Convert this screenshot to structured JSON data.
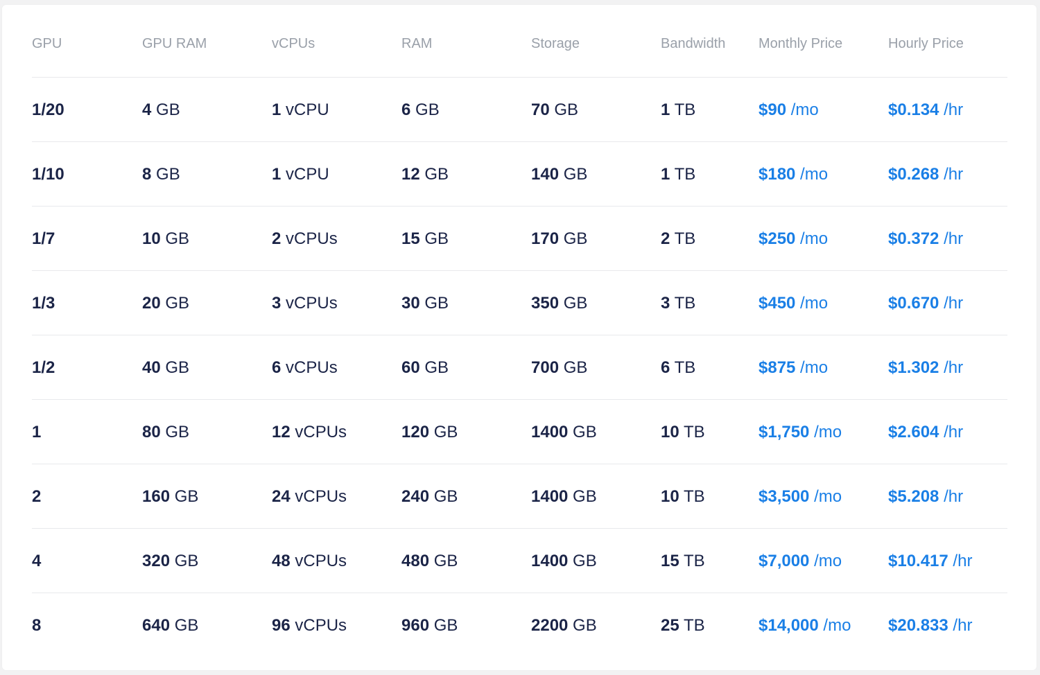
{
  "table": {
    "headers": [
      "GPU",
      "GPU RAM",
      "vCPUs",
      "RAM",
      "Storage",
      "Bandwidth",
      "Monthly Price",
      "Hourly Price"
    ],
    "rows": [
      {
        "gpu": "1/20",
        "gpu_ram": {
          "n": "4",
          "u": " GB"
        },
        "vcpus": {
          "n": "1",
          "u": " vCPU"
        },
        "ram": {
          "n": "6",
          "u": " GB"
        },
        "storage": {
          "n": "70",
          "u": " GB"
        },
        "bandwidth": {
          "n": "1",
          "u": " TB"
        },
        "monthly": {
          "n": "$90",
          "u": " /mo"
        },
        "hourly": {
          "n": "$0.134",
          "u": " /hr"
        }
      },
      {
        "gpu": "1/10",
        "gpu_ram": {
          "n": "8",
          "u": " GB"
        },
        "vcpus": {
          "n": "1",
          "u": " vCPU"
        },
        "ram": {
          "n": "12",
          "u": " GB"
        },
        "storage": {
          "n": "140",
          "u": " GB"
        },
        "bandwidth": {
          "n": "1",
          "u": " TB"
        },
        "monthly": {
          "n": "$180",
          "u": " /mo"
        },
        "hourly": {
          "n": "$0.268",
          "u": " /hr"
        }
      },
      {
        "gpu": "1/7",
        "gpu_ram": {
          "n": "10",
          "u": " GB"
        },
        "vcpus": {
          "n": "2",
          "u": " vCPUs"
        },
        "ram": {
          "n": "15",
          "u": " GB"
        },
        "storage": {
          "n": "170",
          "u": " GB"
        },
        "bandwidth": {
          "n": "2",
          "u": " TB"
        },
        "monthly": {
          "n": "$250",
          "u": " /mo"
        },
        "hourly": {
          "n": "$0.372",
          "u": " /hr"
        }
      },
      {
        "gpu": "1/3",
        "gpu_ram": {
          "n": "20",
          "u": " GB"
        },
        "vcpus": {
          "n": "3",
          "u": " vCPUs"
        },
        "ram": {
          "n": "30",
          "u": " GB"
        },
        "storage": {
          "n": "350",
          "u": " GB"
        },
        "bandwidth": {
          "n": "3",
          "u": " TB"
        },
        "monthly": {
          "n": "$450",
          "u": " /mo"
        },
        "hourly": {
          "n": "$0.670",
          "u": " /hr"
        }
      },
      {
        "gpu": "1/2",
        "gpu_ram": {
          "n": "40",
          "u": " GB"
        },
        "vcpus": {
          "n": "6",
          "u": " vCPUs"
        },
        "ram": {
          "n": "60",
          "u": " GB"
        },
        "storage": {
          "n": "700",
          "u": " GB"
        },
        "bandwidth": {
          "n": "6",
          "u": " TB"
        },
        "monthly": {
          "n": "$875",
          "u": " /mo"
        },
        "hourly": {
          "n": "$1.302",
          "u": " /hr"
        }
      },
      {
        "gpu": "1",
        "gpu_ram": {
          "n": "80",
          "u": " GB"
        },
        "vcpus": {
          "n": "12",
          "u": " vCPUs"
        },
        "ram": {
          "n": "120",
          "u": " GB"
        },
        "storage": {
          "n": "1400",
          "u": " GB"
        },
        "bandwidth": {
          "n": "10",
          "u": " TB"
        },
        "monthly": {
          "n": "$1,750",
          "u": " /mo"
        },
        "hourly": {
          "n": "$2.604",
          "u": " /hr"
        }
      },
      {
        "gpu": "2",
        "gpu_ram": {
          "n": "160",
          "u": " GB"
        },
        "vcpus": {
          "n": "24",
          "u": " vCPUs"
        },
        "ram": {
          "n": "240",
          "u": " GB"
        },
        "storage": {
          "n": "1400",
          "u": " GB"
        },
        "bandwidth": {
          "n": "10",
          "u": " TB"
        },
        "monthly": {
          "n": "$3,500",
          "u": " /mo"
        },
        "hourly": {
          "n": "$5.208",
          "u": " /hr"
        }
      },
      {
        "gpu": "4",
        "gpu_ram": {
          "n": "320",
          "u": " GB"
        },
        "vcpus": {
          "n": "48",
          "u": " vCPUs"
        },
        "ram": {
          "n": "480",
          "u": " GB"
        },
        "storage": {
          "n": "1400",
          "u": " GB"
        },
        "bandwidth": {
          "n": "15",
          "u": " TB"
        },
        "monthly": {
          "n": "$7,000",
          "u": " /mo"
        },
        "hourly": {
          "n": "$10.417",
          "u": " /hr"
        }
      },
      {
        "gpu": "8",
        "gpu_ram": {
          "n": "640",
          "u": " GB"
        },
        "vcpus": {
          "n": "96",
          "u": " vCPUs"
        },
        "ram": {
          "n": "960",
          "u": " GB"
        },
        "storage": {
          "n": "2200",
          "u": " GB"
        },
        "bandwidth": {
          "n": "25",
          "u": " TB"
        },
        "monthly": {
          "n": "$14,000",
          "u": " /mo"
        },
        "hourly": {
          "n": "$20.833",
          "u": " /hr"
        }
      }
    ]
  },
  "colors": {
    "page_background": "#f2f2f3",
    "card_background": "#ffffff",
    "header_text": "#9aa0a9",
    "body_text": "#1b2447",
    "price_text": "#1a7fe6",
    "divider": "#e8e9ec"
  }
}
